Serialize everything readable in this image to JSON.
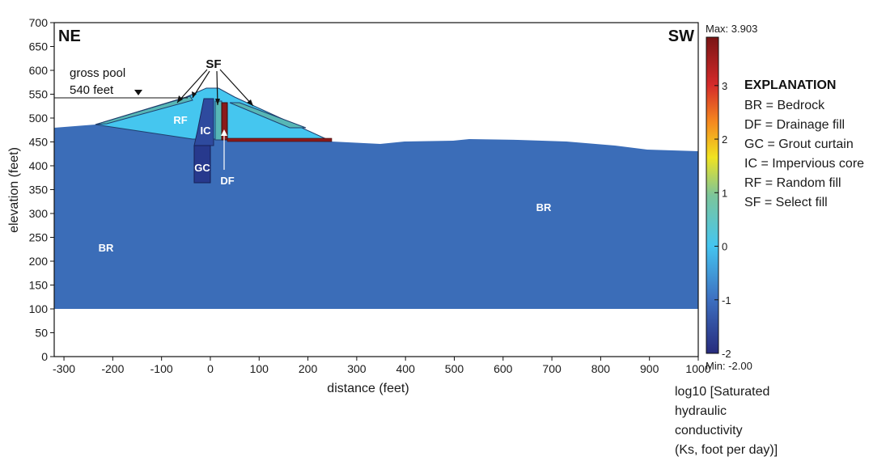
{
  "directions": {
    "left": "NE",
    "right": "SW"
  },
  "axes": {
    "xlabel": "distance (feet)",
    "ylabel": "elevation (feet)",
    "xlim": [
      -320,
      1000
    ],
    "ylim": [
      0,
      700
    ],
    "xticks": [
      "-300",
      "-200",
      "-100",
      "0",
      "100",
      "200",
      "300",
      "400",
      "500",
      "600",
      "700",
      "800",
      "900",
      "1000"
    ],
    "yticks": [
      "0",
      "50",
      "100",
      "150",
      "200",
      "250",
      "300",
      "350",
      "400",
      "450",
      "500",
      "550",
      "600",
      "650",
      "700"
    ]
  },
  "pool": {
    "line1": "gross pool",
    "line2": "540 feet",
    "elevation": 540
  },
  "zone_labels": {
    "BR": "BR",
    "RF": "RF",
    "IC": "IC",
    "GC": "GC",
    "DF": "DF",
    "SF": "SF"
  },
  "explanation": {
    "title": "EXPLANATION",
    "items": [
      "BR = Bedrock",
      "DF = Drainage fill",
      "GC = Grout curtain",
      "IC = Impervious core",
      "RF = Random fill",
      "SF = Select fill"
    ]
  },
  "colorbar": {
    "max_label": "Max: 3.903",
    "min_label": "Min: -2.00",
    "ticks": [
      "3",
      "2",
      "1",
      "0",
      "-1",
      "-2"
    ],
    "label_lines": [
      "log10 [Saturated",
      "hydraulic",
      "conductivity",
      "(Ks, foot per day)]"
    ]
  },
  "colors": {
    "bedrock": "#3b6db8",
    "random_fill": "#45c6ef",
    "select_fill": "#57b7b6",
    "core": "#2e4a9e",
    "grout": "#27398d",
    "drain": "#8b1a1a"
  }
}
